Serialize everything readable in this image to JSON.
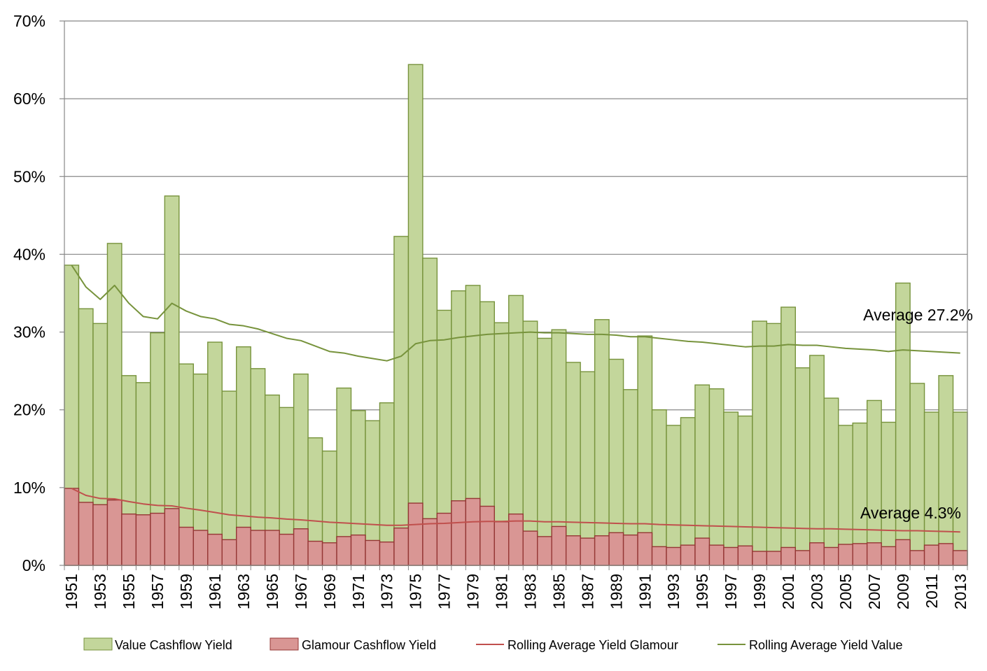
{
  "chart_data": {
    "type": "bar",
    "title": "",
    "xlabel": "",
    "ylabel": "",
    "ylim": [
      0,
      70
    ],
    "y_ticks": [
      "0%",
      "10%",
      "20%",
      "30%",
      "40%",
      "50%",
      "60%",
      "70%"
    ],
    "grid": "horizontal",
    "x_tick_labels": [
      "1951",
      "1953",
      "1955",
      "1957",
      "1959",
      "1961",
      "1963",
      "1965",
      "1967",
      "1969",
      "1971",
      "1973",
      "1975",
      "1977",
      "1979",
      "1981",
      "1983",
      "1985",
      "1987",
      "1989",
      "1991",
      "1993",
      "1995",
      "1997",
      "1999",
      "2001",
      "2003",
      "2005",
      "2007",
      "2009",
      "2011",
      "2013"
    ],
    "categories": [
      1951,
      1952,
      1953,
      1954,
      1955,
      1956,
      1957,
      1958,
      1959,
      1960,
      1961,
      1962,
      1963,
      1964,
      1965,
      1966,
      1967,
      1968,
      1969,
      1970,
      1971,
      1972,
      1973,
      1974,
      1975,
      1976,
      1977,
      1978,
      1979,
      1980,
      1981,
      1982,
      1983,
      1984,
      1985,
      1986,
      1987,
      1988,
      1989,
      1990,
      1991,
      1992,
      1993,
      1994,
      1995,
      1996,
      1997,
      1998,
      1999,
      2000,
      2001,
      2002,
      2003,
      2004,
      2005,
      2006,
      2007,
      2008,
      2009,
      2010,
      2011,
      2012,
      2013
    ],
    "series": [
      {
        "name": "Value Cashflow Yield",
        "kind": "bar",
        "color": "#c3d69b",
        "edge": "#77933c",
        "values": [
          38.6,
          33.0,
          31.1,
          41.4,
          24.4,
          23.5,
          29.9,
          47.5,
          25.9,
          24.6,
          28.7,
          22.4,
          28.1,
          25.3,
          21.9,
          20.3,
          24.6,
          16.4,
          14.7,
          22.8,
          19.9,
          18.6,
          20.9,
          42.3,
          64.4,
          39.5,
          32.8,
          35.3,
          36.0,
          33.9,
          31.2,
          34.7,
          31.4,
          29.2,
          30.3,
          26.1,
          24.9,
          31.6,
          26.5,
          22.6,
          29.5,
          20.0,
          18.0,
          19.0,
          23.2,
          22.7,
          19.7,
          19.2,
          31.4,
          31.1,
          33.2,
          25.4,
          27.0,
          21.5,
          18.0,
          18.3,
          21.2,
          18.4,
          36.3,
          23.4,
          19.7,
          24.4,
          19.7
        ]
      },
      {
        "name": "Glamour Cashflow Yield",
        "kind": "bar",
        "color": "#d99694",
        "edge": "#953735",
        "values": [
          9.9,
          8.1,
          7.8,
          8.4,
          6.6,
          6.5,
          6.7,
          7.3,
          4.9,
          4.5,
          4.0,
          3.3,
          4.9,
          4.5,
          4.5,
          4.0,
          4.7,
          3.1,
          2.9,
          3.7,
          3.9,
          3.2,
          3.0,
          4.8,
          8.0,
          6.0,
          6.7,
          8.3,
          8.6,
          7.6,
          5.6,
          6.6,
          4.4,
          3.7,
          5.0,
          3.8,
          3.5,
          3.8,
          4.2,
          3.9,
          4.2,
          2.4,
          2.3,
          2.6,
          3.5,
          2.6,
          2.3,
          2.5,
          1.8,
          1.8,
          2.3,
          1.9,
          2.9,
          2.3,
          2.7,
          2.8,
          2.9,
          2.4,
          3.3,
          1.9,
          2.6,
          2.8,
          1.9
        ]
      },
      {
        "name": "Rolling Average Yield Glamour",
        "kind": "line",
        "color": "#c0504d",
        "values": [
          9.9,
          9.0,
          8.6,
          8.55,
          8.2,
          7.9,
          7.7,
          7.65,
          7.35,
          7.1,
          6.8,
          6.5,
          6.35,
          6.2,
          6.1,
          5.95,
          5.85,
          5.7,
          5.55,
          5.45,
          5.35,
          5.25,
          5.15,
          5.15,
          5.25,
          5.35,
          5.4,
          5.5,
          5.6,
          5.65,
          5.65,
          5.7,
          5.7,
          5.6,
          5.6,
          5.55,
          5.5,
          5.45,
          5.4,
          5.35,
          5.35,
          5.25,
          5.2,
          5.15,
          5.1,
          5.05,
          5.0,
          4.95,
          4.9,
          4.85,
          4.8,
          4.75,
          4.7,
          4.7,
          4.65,
          4.6,
          4.55,
          4.5,
          4.45,
          4.45,
          4.4,
          4.35,
          4.3
        ]
      },
      {
        "name": "Rolling Average Yield Value",
        "kind": "line",
        "color": "#77933c",
        "values": [
          38.6,
          35.8,
          34.2,
          36.0,
          33.7,
          32.0,
          31.7,
          33.7,
          32.7,
          32.0,
          31.7,
          31.0,
          30.8,
          30.4,
          29.8,
          29.2,
          28.9,
          28.2,
          27.5,
          27.3,
          26.9,
          26.6,
          26.3,
          26.9,
          28.5,
          28.9,
          29.0,
          29.3,
          29.5,
          29.7,
          29.8,
          29.9,
          30.0,
          29.9,
          29.9,
          29.8,
          29.7,
          29.7,
          29.6,
          29.4,
          29.4,
          29.2,
          29.0,
          28.8,
          28.7,
          28.5,
          28.3,
          28.1,
          28.2,
          28.2,
          28.4,
          28.3,
          28.3,
          28.1,
          27.9,
          27.8,
          27.7,
          27.5,
          27.7,
          27.6,
          27.5,
          27.4,
          27.3
        ]
      }
    ],
    "annotations": [
      "Average 27.2%",
      "Average 4.3%"
    ],
    "legend": {
      "position": "bottom",
      "items": [
        "Value Cashflow Yield",
        "Glamour Cashflow Yield",
        "Rolling Average Yield Glamour",
        "Rolling Average Yield Value"
      ]
    },
    "colors": {
      "grid": "#888888",
      "axis": "#888888"
    }
  }
}
